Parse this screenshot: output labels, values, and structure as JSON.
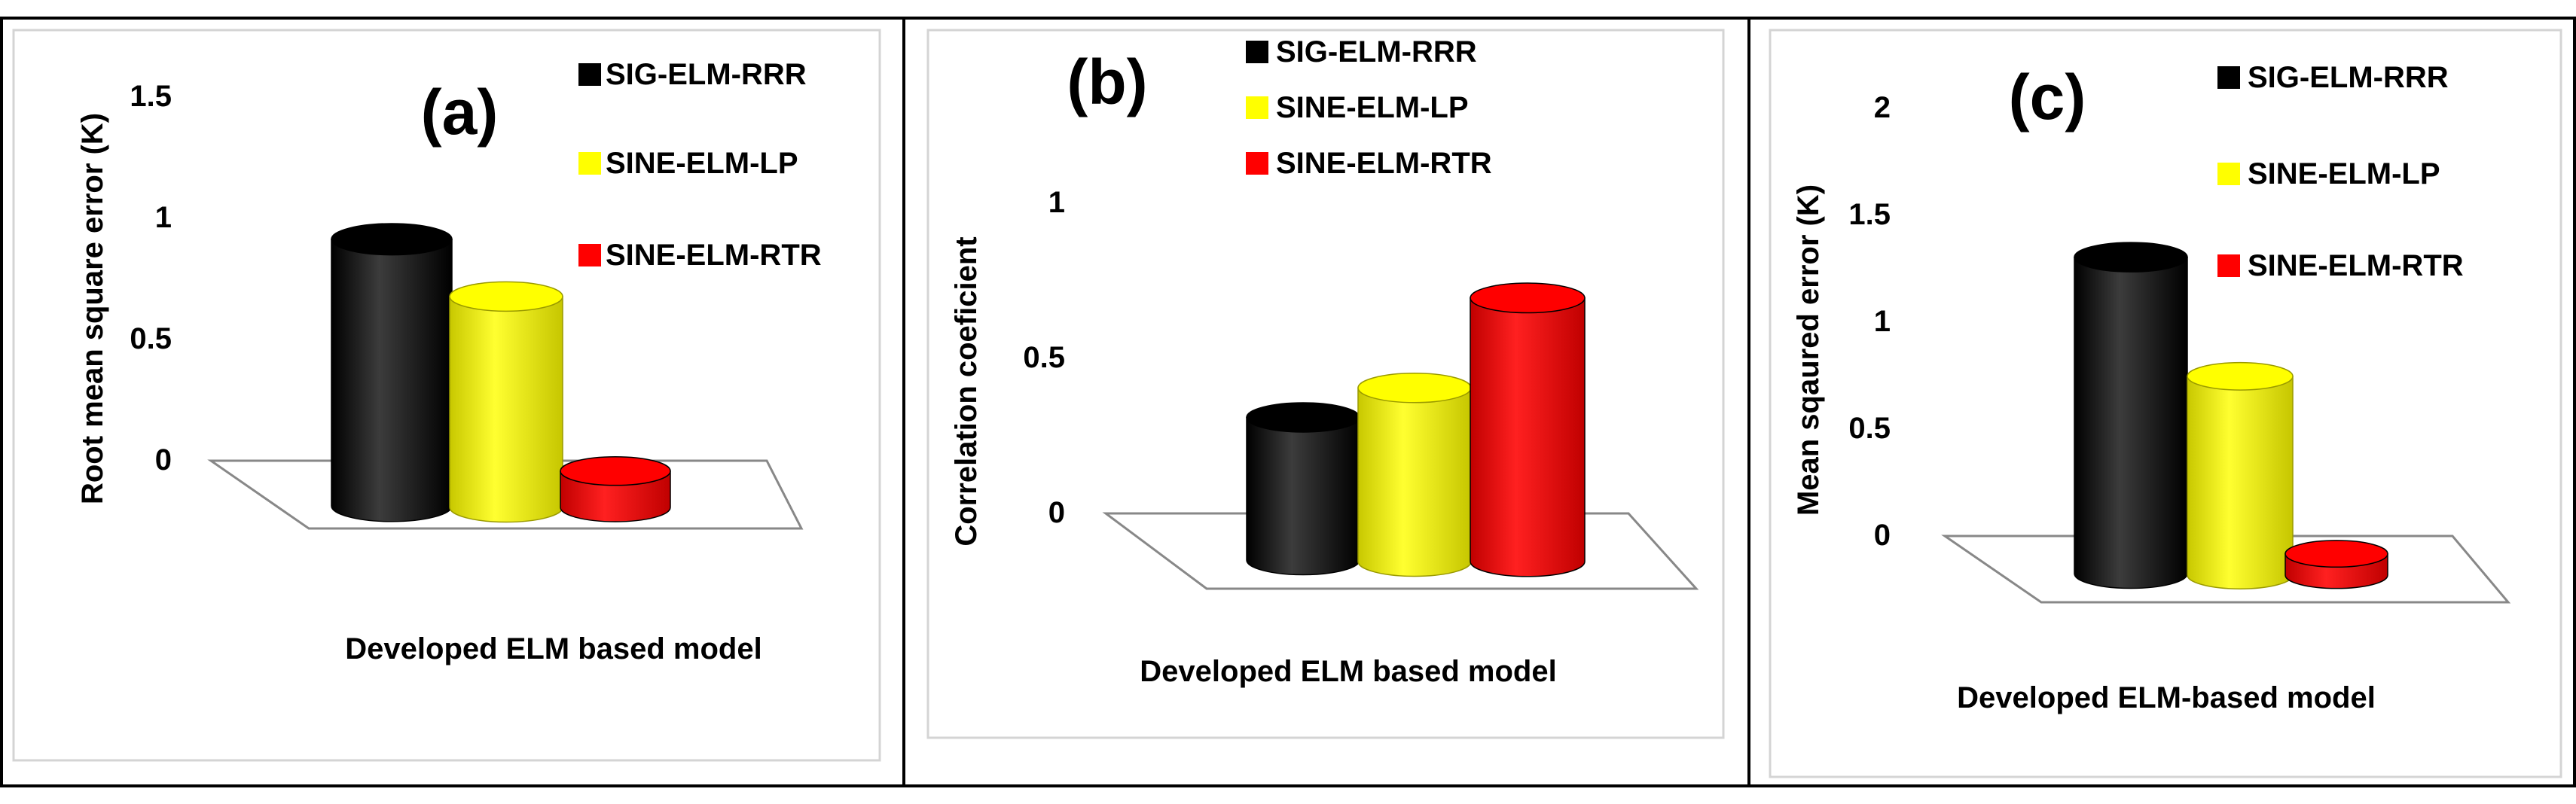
{
  "colors": {
    "background": "#ffffff",
    "border": "#000000",
    "frame": "#d4d4d4",
    "floor": "#888888",
    "text": "#000000"
  },
  "chart_data": [
    {
      "type": "bar",
      "panel_label": "(a)",
      "categories": [
        "SIG-ELM-RRR",
        "SINE-ELM-LP",
        "SINE-ELM-RTR"
      ],
      "values": [
        1.1,
        0.87,
        0.15
      ],
      "series_colors": [
        "#000000",
        "#ffff00",
        "#ff0000"
      ],
      "legend": [
        "SIG-ELM-RRR",
        "SINE-ELM-LP",
        "SINE-ELM-RTR"
      ],
      "legend_position": "right",
      "xlabel": "Developed ELM based model",
      "ylabel": "Root mean square error (K)",
      "yticks": [
        "0",
        "0.5",
        "1",
        "1.5"
      ],
      "ylim": [
        0,
        1.5
      ]
    },
    {
      "type": "bar",
      "panel_label": "(b)",
      "categories": [
        "SIG-ELM-RRR",
        "SINE-ELM-LP",
        "SINE-ELM-RTR"
      ],
      "values": [
        0.46,
        0.56,
        0.85
      ],
      "series_colors": [
        "#000000",
        "#ffff00",
        "#ff0000"
      ],
      "legend": [
        "SIG-ELM-RRR",
        "SINE-ELM-LP",
        "SINE-ELM-RTR"
      ],
      "legend_position": "top-right",
      "xlabel": "Developed ELM based model",
      "ylabel": "Correlation coeficient",
      "yticks": [
        "0",
        "0.5",
        "1"
      ],
      "ylim": [
        0,
        1
      ]
    },
    {
      "type": "bar",
      "panel_label": "(c)",
      "categories": [
        "SIG-ELM-RRR",
        "SINE-ELM-LP",
        "SINE-ELM-RTR"
      ],
      "values": [
        1.48,
        0.93,
        0.1
      ],
      "series_colors": [
        "#000000",
        "#ffff00",
        "#ff0000"
      ],
      "legend": [
        "SIG-ELM-RRR",
        "SINE-ELM-LP",
        "SINE-ELM-RTR"
      ],
      "legend_position": "right",
      "xlabel": "Developed ELM-based model",
      "ylabel": "Mean sqaured error (K)",
      "yticks": [
        "0",
        "0.5",
        "1",
        "1.5",
        "2"
      ],
      "ylim": [
        0,
        2
      ]
    }
  ]
}
